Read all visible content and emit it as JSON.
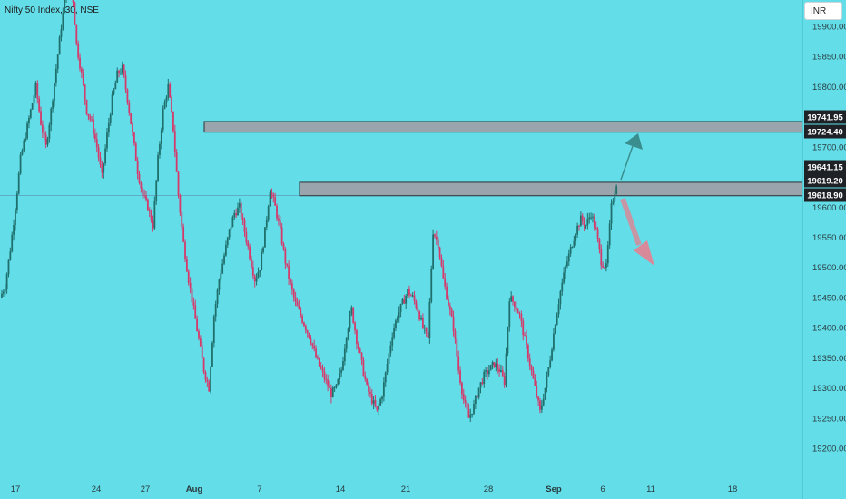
{
  "header": {
    "symbol_line": "Nifty 50 Index, 30, NSE",
    "currency": "INR"
  },
  "chart_data": {
    "type": "candlestick",
    "title": "Nifty 50 Index, 30, NSE",
    "currency": "INR",
    "ylim": [
      19175,
      19975
    ],
    "y_ticks": [
      "19200.00",
      "19250.00",
      "19300.00",
      "19350.00",
      "19400.00",
      "19450.00",
      "19500.00",
      "19550.00",
      "19600.00",
      "19650.00",
      "19700.00",
      "19750.00",
      "19800.00",
      "19850.00",
      "19900.00"
    ],
    "x_ticks": [
      {
        "label": "17",
        "bold": false
      },
      {
        "label": "24",
        "bold": false
      },
      {
        "label": "27",
        "bold": false
      },
      {
        "label": "Aug",
        "bold": true
      },
      {
        "label": "7",
        "bold": false
      },
      {
        "label": "14",
        "bold": false
      },
      {
        "label": "21",
        "bold": false
      },
      {
        "label": "28",
        "bold": false
      },
      {
        "label": "Sep",
        "bold": true
      },
      {
        "label": "6",
        "bold": false
      },
      {
        "label": "11",
        "bold": false
      },
      {
        "label": "18",
        "bold": false
      }
    ],
    "zones": [
      {
        "name": "upper-resistance-zone",
        "top": 19741.95,
        "bottom": 19724.4
      },
      {
        "name": "lower-resistance-zone",
        "top": 19641.15,
        "bottom": 19618.9
      }
    ],
    "price_labels": [
      "19741.95",
      "19724.40",
      "19641.15",
      "19619.20",
      "19618.90"
    ],
    "current_price": 19619.2,
    "path": [
      19450,
      19470,
      19530,
      19600,
      19680,
      19720,
      19760,
      19800,
      19740,
      19700,
      19760,
      19830,
      19900,
      19960,
      19980,
      19870,
      19820,
      19760,
      19740,
      19700,
      19650,
      19720,
      19780,
      19820,
      19830,
      19780,
      19720,
      19660,
      19620,
      19600,
      19570,
      19680,
      19760,
      19800,
      19730,
      19620,
      19540,
      19480,
      19430,
      19380,
      19330,
      19300,
      19420,
      19480,
      19520,
      19560,
      19590,
      19600,
      19560,
      19520,
      19480,
      19500,
      19560,
      19630,
      19600,
      19560,
      19510,
      19470,
      19440,
      19420,
      19400,
      19380,
      19350,
      19330,
      19310,
      19290,
      19300,
      19330,
      19390,
      19430,
      19380,
      19340,
      19300,
      19280,
      19260,
      19290,
      19340,
      19390,
      19420,
      19440,
      19460,
      19450,
      19430,
      19400,
      19380,
      19560,
      19540,
      19480,
      19440,
      19400,
      19330,
      19280,
      19250,
      19270,
      19300,
      19320,
      19330,
      19340,
      19330,
      19310,
      19450,
      19440,
      19420,
      19380,
      19340,
      19300,
      19260,
      19300,
      19350,
      19410,
      19460,
      19500,
      19530,
      19560,
      19580,
      19570,
      19590,
      19560,
      19510,
      19500,
      19600,
      19640
    ],
    "annotations": [
      {
        "name": "up-arrow",
        "direction": "up",
        "color": "#3a8f8e"
      },
      {
        "name": "down-arrow",
        "direction": "down",
        "color": "#d98a9a"
      }
    ],
    "colors": {
      "background": "#63dde8",
      "up_candle": "#1f6f6c",
      "down_candle": "#d53a6b",
      "zone_fill": "#9aa4ad",
      "zone_border": "#2b2f33",
      "label_bg": "#1e2226",
      "label_text": "#ffffff"
    }
  }
}
